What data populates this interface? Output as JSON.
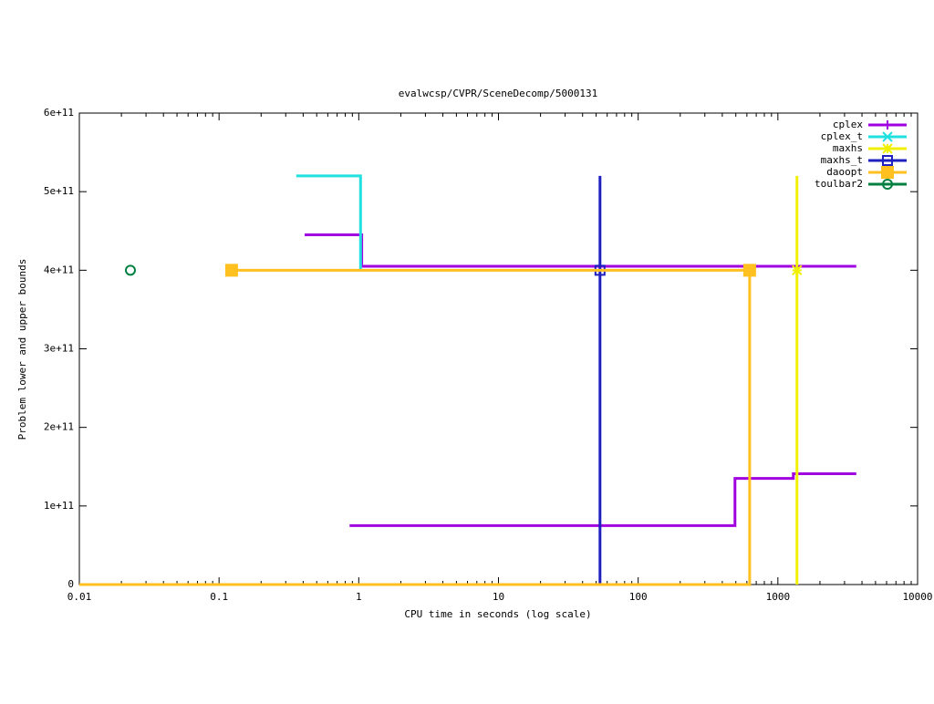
{
  "chart_data": {
    "type": "line",
    "title": "evalwcsp/CVPR/SceneDecomp/5000131",
    "x_label": "CPU time in seconds (log scale)",
    "y_label": "Problem lower and upper bounds",
    "x_log": true,
    "legend": "top-right",
    "xlim": [
      0.01,
      10000
    ],
    "xticks": [
      0.01,
      0.1,
      1,
      10,
      100,
      1000,
      10000
    ],
    "ylim": [
      0,
      600000000000
    ],
    "yticks": [
      0,
      {
        "value": 100000000000,
        "label": "1e+11"
      },
      {
        "value": 200000000000,
        "label": "2e+11"
      },
      {
        "value": 300000000000,
        "label": "3e+11"
      },
      {
        "value": 400000000000,
        "label": "4e+11"
      },
      {
        "value": 500000000000,
        "label": "5e+11"
      },
      {
        "value": 600000000000,
        "label": "6e+11"
      }
    ],
    "series": [
      {
        "name": "cplex",
        "color": "#a000e0",
        "marker": "plus",
        "x": [
          0.41,
          1.05,
          1.05,
          3640,
          null,
          0.86,
          493,
          493,
          1290,
          1290,
          3640
        ],
        "values": [
          445000000000,
          445000000000,
          405000000000,
          405000000000,
          null,
          75000000000,
          75000000000,
          135000000000,
          135000000000,
          141000000000,
          141000000000
        ],
        "marker_x": [],
        "marker_values": []
      },
      {
        "name": "cplex_t",
        "color": "#20e0e0",
        "marker": "cross",
        "x": [
          0.357,
          1.03,
          1.03
        ],
        "values": [
          520000000000,
          520000000000,
          400000000000
        ],
        "marker_x": [],
        "marker_values": []
      },
      {
        "name": "maxhs",
        "color": "#f0f000",
        "marker": "star",
        "x": [
          1370,
          1370
        ],
        "values": [
          0,
          520000000000
        ],
        "marker_x": [
          1370
        ],
        "marker_values": [
          400000000000
        ]
      },
      {
        "name": "maxhs_t",
        "color": "#2020c0",
        "marker": "square",
        "x": [
          53.3,
          53.3
        ],
        "values": [
          0,
          520000000000
        ],
        "marker_x": [
          53.3
        ],
        "marker_values": [
          400000000000
        ]
      },
      {
        "name": "daoopt",
        "color": "#ffc020",
        "marker": "filled-square",
        "x": [
          0.123,
          628,
          628,
          0.01
        ],
        "values": [
          400000000000,
          400000000000,
          0,
          0
        ],
        "marker_x": [
          0.123,
          628
        ],
        "marker_values": [
          400000000000,
          400000000000
        ]
      },
      {
        "name": "toulbar2",
        "color": "#008040",
        "marker": "circle",
        "x": [],
        "values": [],
        "marker_x": [
          0.0232
        ],
        "marker_values": [
          400000000000
        ]
      }
    ]
  }
}
